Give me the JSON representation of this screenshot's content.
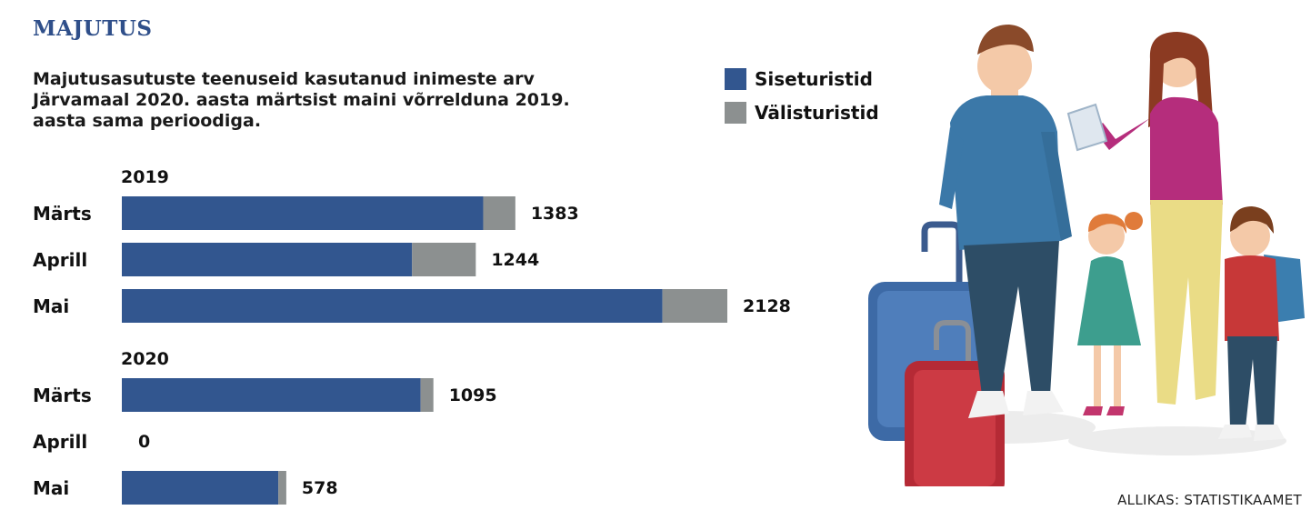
{
  "header": "MAJUTUS",
  "chart_data": {
    "type": "bar",
    "orientation": "horizontal",
    "stacked": true,
    "title": "Majutusasutuste teenuseid kasutanud inimeste arv Järvamaal 2020. aasta märtsist maini võrrelduna 2019. aasta sama perioodiga.",
    "series_names": [
      "Siseturistid",
      "Välisturistid"
    ],
    "colors": {
      "Siseturistid": "#32568f",
      "Välisturistid": "#8c9090"
    },
    "legend_position": "top-right",
    "groups": [
      {
        "label": "2019",
        "categories": [
          "Märts",
          "Aprill",
          "Mai"
        ],
        "series": [
          {
            "name": "Siseturistid",
            "values": [
              1270,
              1020,
              1900
            ]
          },
          {
            "name": "Välisturistid",
            "values": [
              113,
              224,
              228
            ]
          }
        ],
        "totals": [
          "1383",
          "1244",
          "2128"
        ]
      },
      {
        "label": "2020",
        "categories": [
          "Märts",
          "Aprill",
          "Mai"
        ],
        "series": [
          {
            "name": "Siseturistid",
            "values": [
              1050,
              0,
              550
            ]
          },
          {
            "name": "Välisturistid",
            "values": [
              45,
              0,
              28
            ]
          }
        ],
        "totals": [
          "1095",
          "0",
          "578"
        ]
      }
    ],
    "xlim": [
      0,
      2128
    ],
    "grid": false
  },
  "source": "ALLIKAS: STATISTIKAAMET",
  "illustration": {
    "description_icon": "family-travel-illustration"
  }
}
